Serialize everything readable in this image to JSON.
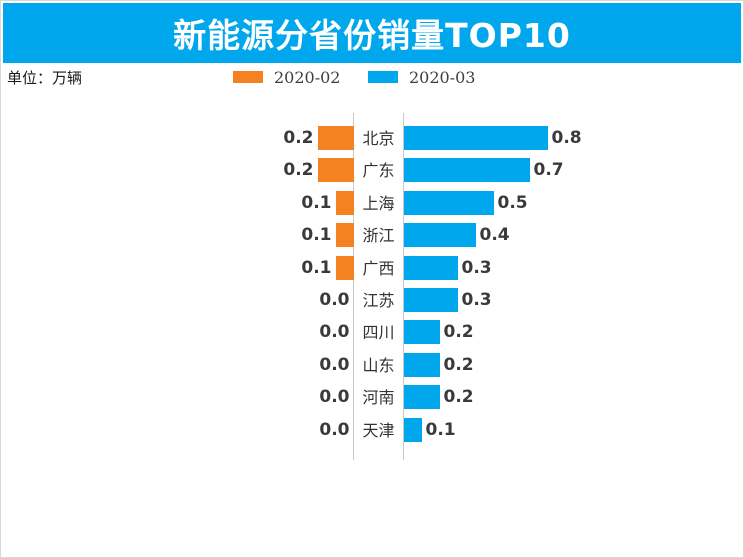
{
  "header": {
    "title": "新能源分省份销量TOP10"
  },
  "unit_label": "单位：万辆",
  "legend": {
    "items": [
      {
        "label": "2020-02",
        "color": "#f58220"
      },
      {
        "label": "2020-03",
        "color": "#00a7ec"
      }
    ]
  },
  "colors": {
    "banner_bg": "#00a7ec",
    "banner_text": "#ffffff",
    "bar_left": "#f58220",
    "bar_right": "#00a7ec",
    "axis_line": "#c9c9c9",
    "value_text": "#3a3a3a",
    "category_text": "#333333"
  },
  "chart_data": {
    "type": "bar",
    "variant": "tornado",
    "title": "新能源分省份销量TOP10",
    "unit": "万辆",
    "legend_position": "top",
    "grid": false,
    "categories": [
      "北京",
      "广东",
      "上海",
      "浙江",
      "广西",
      "江苏",
      "四川",
      "山东",
      "河南",
      "天津"
    ],
    "series": [
      {
        "name": "2020-02",
        "side": "left",
        "color": "#f58220",
        "values": [
          0.2,
          0.2,
          0.1,
          0.1,
          0.1,
          0.0,
          0.0,
          0.0,
          0.0,
          0.0
        ]
      },
      {
        "name": "2020-03",
        "side": "right",
        "color": "#00a7ec",
        "values": [
          0.8,
          0.7,
          0.5,
          0.4,
          0.3,
          0.3,
          0.2,
          0.2,
          0.2,
          0.1
        ]
      }
    ],
    "value_label_decimals": 1,
    "xlim": [
      0,
      1.0
    ]
  }
}
